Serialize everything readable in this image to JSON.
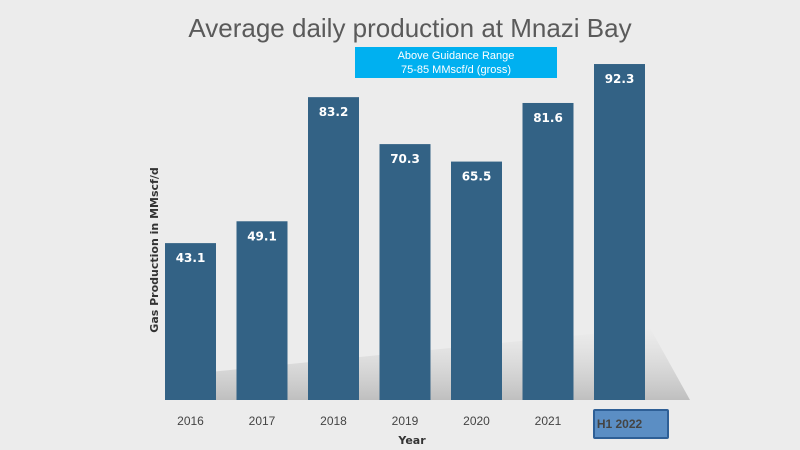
{
  "colors": {
    "bar": "#336285",
    "guidance_box": "#00b0f0",
    "highlight_box": "#5b8ec4",
    "highlight_border": "#2e5f96",
    "background": "#ececec"
  },
  "chart_data": {
    "type": "bar",
    "title": "Average daily production at Mnazi Bay",
    "xlabel": "Year",
    "ylabel": "Gas Production in MMscf/d",
    "categories": [
      "2016",
      "2017",
      "2018",
      "2019",
      "2020",
      "2021",
      "H1 2022"
    ],
    "values": [
      43.1,
      49.1,
      83.2,
      70.3,
      65.5,
      81.6,
      92.3
    ],
    "data_labels": [
      "43.1",
      "49.1",
      "83.2",
      "70.3",
      "65.5",
      "81.6",
      "92.3"
    ],
    "highlighted_category": "H1 2022",
    "ylim": [
      0,
      100
    ],
    "grid": false,
    "legend": "none",
    "annotation": {
      "line1": "Above Guidance Range",
      "line2": "75-85 MMscf/d (gross)"
    }
  }
}
